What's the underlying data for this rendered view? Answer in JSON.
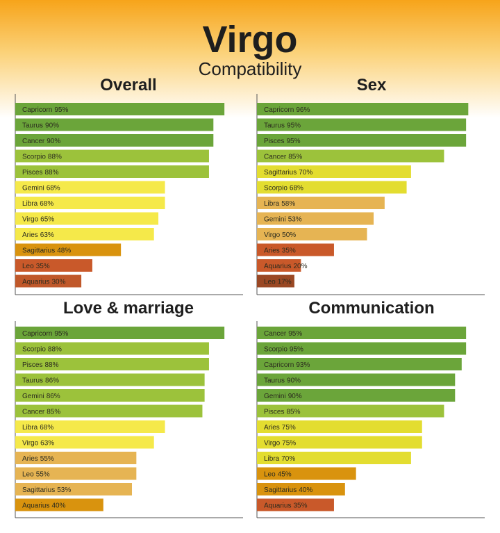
{
  "header": {
    "title": "Virgo",
    "subtitle": "Compatibility"
  },
  "chart_data": [
    {
      "type": "bar",
      "orientation": "horizontal",
      "title": "Overall",
      "xlim": [
        0,
        100
      ],
      "categories": [
        "Capricorn",
        "Taurus",
        "Cancer",
        "Scorpio",
        "Pisces",
        "Gemini",
        "Libra",
        "Virgo",
        "Aries",
        "Sagittarius",
        "Leo",
        "Aquarius"
      ],
      "values": [
        95,
        90,
        90,
        88,
        88,
        68,
        68,
        65,
        63,
        48,
        35,
        30
      ],
      "value_labels": [
        "95%",
        "90%",
        "90%",
        "88%",
        "88%",
        "68%",
        "68%",
        "65%",
        "63%",
        "48%",
        "35%",
        "30%"
      ],
      "colors": [
        "#6ba53a",
        "#6ba53a",
        "#6ba53a",
        "#9cc23b",
        "#9cc23b",
        "#f5e94a",
        "#f5e94a",
        "#f5e94a",
        "#f5e94a",
        "#d9930e",
        "#c9592a",
        "#c0582a"
      ]
    },
    {
      "type": "bar",
      "orientation": "horizontal",
      "title": "Sex",
      "xlim": [
        0,
        100
      ],
      "categories": [
        "Capricorn",
        "Taurus",
        "Pisces",
        "Cancer",
        "Sagittarius",
        "Scorpio",
        "Libra",
        "Gemini",
        "Virgo",
        "Aries",
        "Aquarius",
        "Leo"
      ],
      "values": [
        96,
        95,
        95,
        85,
        70,
        68,
        58,
        53,
        50,
        35,
        20,
        17
      ],
      "value_labels": [
        "96%",
        "95%",
        "95%",
        "85%",
        "70%",
        "68%",
        "58%",
        "53%",
        "50%",
        "35%",
        "20%",
        "17%"
      ],
      "colors": [
        "#6ba53a",
        "#6ba53a",
        "#6ba53a",
        "#9cc23b",
        "#e3dd30",
        "#e3dd30",
        "#e6b453",
        "#e6b453",
        "#e6b453",
        "#c9592a",
        "#c9592a",
        "#9a4824"
      ]
    },
    {
      "type": "bar",
      "orientation": "horizontal",
      "title": "Love & marriage",
      "xlim": [
        0,
        100
      ],
      "categories": [
        "Capricorn",
        "Scorpio",
        "Pisces",
        "Taurus",
        "Gemini",
        "Cancer",
        "Libra",
        "Virgo",
        "Aries",
        "Leo",
        "Sagittarius",
        "Aquarius"
      ],
      "values": [
        95,
        88,
        88,
        86,
        86,
        85,
        68,
        63,
        55,
        55,
        53,
        40
      ],
      "value_labels": [
        "95%",
        "88%",
        "88%",
        "86%",
        "86%",
        "85%",
        "68%",
        "63%",
        "55%",
        "55%",
        "53%",
        "40%"
      ],
      "colors": [
        "#6ba53a",
        "#9cc23b",
        "#9cc23b",
        "#9cc23b",
        "#9cc23b",
        "#9cc23b",
        "#f5e94a",
        "#f5e94a",
        "#e6b453",
        "#e6b453",
        "#e6b453",
        "#d9930e"
      ]
    },
    {
      "type": "bar",
      "orientation": "horizontal",
      "title": "Communication",
      "xlim": [
        0,
        100
      ],
      "categories": [
        "Cancer",
        "Scorpio",
        "Capricorn",
        "Taurus",
        "Gemini",
        "Pisces",
        "Aries",
        "Virgo",
        "Libra",
        "Leo",
        "Sagittarius",
        "Aquarius"
      ],
      "values": [
        95,
        95,
        93,
        90,
        90,
        85,
        75,
        75,
        70,
        45,
        40,
        35
      ],
      "value_labels": [
        "95%",
        "95%",
        "93%",
        "90%",
        "90%",
        "85%",
        "75%",
        "75%",
        "70%",
        "45%",
        "40%",
        "35%"
      ],
      "colors": [
        "#6ba53a",
        "#6ba53a",
        "#6ba53a",
        "#6ba53a",
        "#6ba53a",
        "#9cc23b",
        "#e3dd30",
        "#e3dd30",
        "#e3dd30",
        "#d9930e",
        "#d9930e",
        "#c9592a"
      ]
    }
  ]
}
